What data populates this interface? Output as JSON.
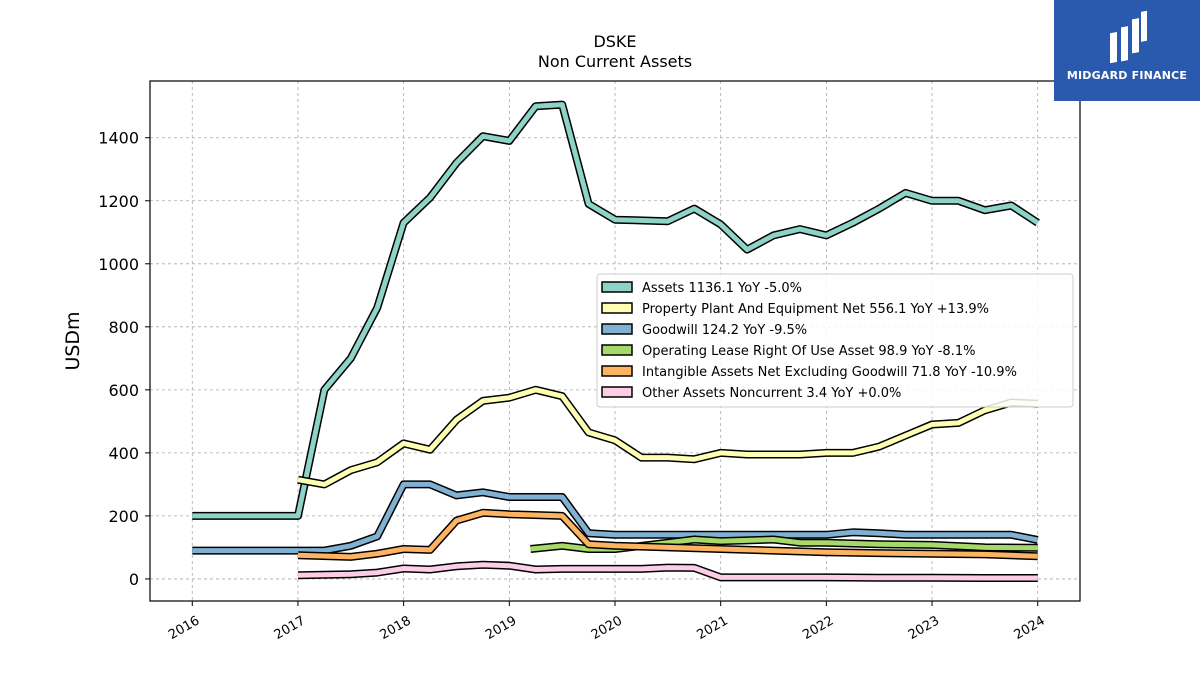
{
  "chart_data": {
    "type": "line",
    "title": "DSKE",
    "subtitle": "Non Current  Assets",
    "ylabel": "USDm",
    "xlabel": "",
    "xlim": [
      2015.6,
      2024.4
    ],
    "ylim": [
      -70,
      1580
    ],
    "x_ticks": [
      "2016",
      "2017",
      "2018",
      "2019",
      "2020",
      "2021",
      "2022",
      "2023",
      "2024"
    ],
    "y_ticks": [
      0,
      200,
      400,
      600,
      800,
      1000,
      1200,
      1400
    ],
    "grid": true,
    "legend_position": "center-right",
    "series": [
      {
        "name": "Assets",
        "legend_label": "Assets  1136.1 YoY -5.0%",
        "color": "#8dd3c7",
        "x": [
          2016.0,
          2017.0,
          2017.25,
          2017.5,
          2017.75,
          2018.0,
          2018.25,
          2018.5,
          2018.75,
          2019.0,
          2019.25,
          2019.5,
          2019.75,
          2020.0,
          2020.5,
          2020.75,
          2021.0,
          2021.25,
          2021.5,
          2021.75,
          2022.0,
          2022.25,
          2022.5,
          2022.75,
          2023.0,
          2023.25,
          2023.5,
          2023.75,
          2024.0
        ],
        "y": [
          200,
          200,
          600,
          700,
          860,
          1130,
          1210,
          1320,
          1405,
          1390,
          1500,
          1505,
          1190,
          1140,
          1135,
          1175,
          1125,
          1045,
          1090,
          1110,
          1090,
          1130,
          1175,
          1225,
          1200,
          1200,
          1170,
          1185,
          1130
        ]
      },
      {
        "name": "Property Plant And Equipment Net",
        "legend_label": "Property Plant And Equipment Net  556.1 YoY +13.9%",
        "color": "#ffffb3",
        "x": [
          2017.0,
          2017.25,
          2017.5,
          2017.75,
          2018.0,
          2018.25,
          2018.5,
          2018.75,
          2019.0,
          2019.25,
          2019.5,
          2019.75,
          2020.0,
          2020.25,
          2020.5,
          2020.75,
          2021.0,
          2021.25,
          2021.5,
          2021.75,
          2022.0,
          2022.25,
          2022.5,
          2022.75,
          2023.0,
          2023.25,
          2023.5,
          2023.75,
          2024.0
        ],
        "y": [
          315,
          300,
          345,
          370,
          430,
          410,
          505,
          565,
          575,
          600,
          580,
          465,
          440,
          385,
          385,
          380,
          400,
          395,
          395,
          395,
          400,
          400,
          420,
          455,
          490,
          495,
          535,
          560,
          556
        ]
      },
      {
        "name": "Goodwill",
        "legend_label": "Goodwill  124.2 YoY -9.5%",
        "color": "#80b1d3",
        "x": [
          2016.0,
          2017.0,
          2017.25,
          2017.5,
          2017.75,
          2018.0,
          2018.25,
          2018.5,
          2018.75,
          2019.0,
          2019.25,
          2019.5,
          2019.75,
          2020.0,
          2020.5,
          2021.0,
          2021.5,
          2022.0,
          2022.25,
          2022.5,
          2022.75,
          2023.0,
          2023.5,
          2023.75,
          2024.0
        ],
        "y": [
          90,
          90,
          90,
          105,
          135,
          300,
          300,
          265,
          275,
          260,
          260,
          260,
          145,
          140,
          140,
          140,
          140,
          140,
          148,
          145,
          140,
          140,
          140,
          140,
          124
        ]
      },
      {
        "name": "Operating Lease Right Of Use Asset",
        "legend_label": "Operating Lease Right Of Use Asset  98.9 YoY -8.1%",
        "color": "#a6d96a",
        "x": [
          2019.2,
          2019.5,
          2019.75,
          2020.0,
          2020.5,
          2020.75,
          2021.0,
          2021.5,
          2021.75,
          2022.0,
          2022.5,
          2023.0,
          2023.5,
          2024.0
        ],
        "y": [
          95,
          105,
          95,
          95,
          115,
          125,
          120,
          125,
          115,
          115,
          110,
          108,
          100,
          99
        ]
      },
      {
        "name": "Intangible Assets Net Excluding Goodwill",
        "legend_label": "Intangible Assets Net Excluding Goodwill  71.8 YoY -10.9%",
        "color": "#fdb462",
        "x": [
          2017.0,
          2017.5,
          2017.75,
          2018.0,
          2018.25,
          2018.5,
          2018.75,
          2019.0,
          2019.5,
          2019.75,
          2020.0,
          2020.5,
          2021.0,
          2021.5,
          2022.0,
          2022.5,
          2023.0,
          2023.5,
          2024.0
        ],
        "y": [
          75,
          70,
          80,
          95,
          92,
          185,
          210,
          205,
          200,
          110,
          105,
          100,
          95,
          90,
          85,
          82,
          80,
          78,
          72
        ]
      },
      {
        "name": "Other Assets Noncurrent",
        "legend_label": "Other Assets Noncurrent  3.4 YoY +0.0%",
        "color": "#fccde5",
        "x": [
          2017.0,
          2017.5,
          2017.75,
          2018.0,
          2018.25,
          2018.5,
          2018.75,
          2019.0,
          2019.25,
          2019.5,
          2020.0,
          2020.25,
          2020.5,
          2020.75,
          2021.0,
          2021.5,
          2022.0,
          2022.5,
          2023.0,
          2023.5,
          2024.0
        ],
        "y": [
          12,
          15,
          20,
          33,
          30,
          40,
          45,
          42,
          30,
          32,
          32,
          32,
          36,
          35,
          5,
          5,
          5,
          4,
          4,
          3,
          3
        ]
      }
    ]
  },
  "brand": {
    "name": "MIDGARD FINANCE",
    "background": "#2a5aad"
  }
}
